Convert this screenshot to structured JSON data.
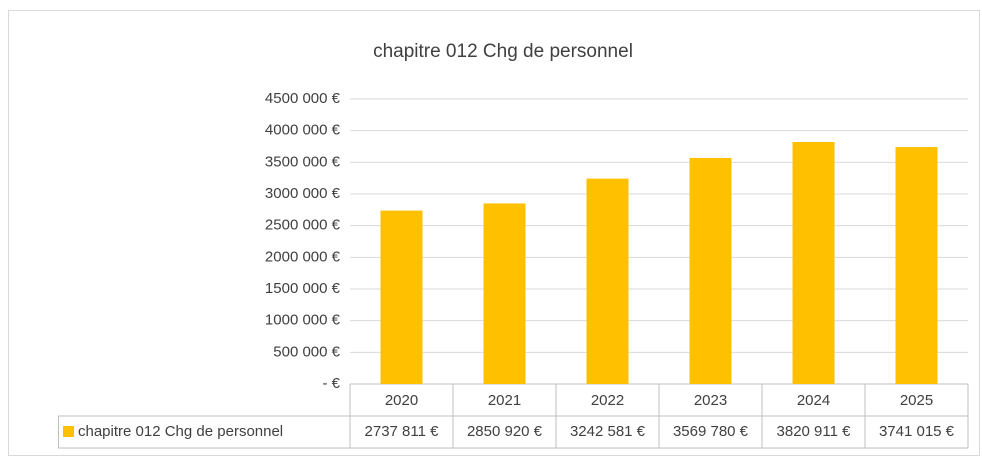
{
  "chart_data": {
    "type": "bar",
    "title": "chapitre 012 Chg de personnel",
    "categories": [
      "2020",
      "2021",
      "2022",
      "2023",
      "2024",
      "2025"
    ],
    "series": [
      {
        "name": "chapitre 012 Chg de personnel",
        "color": "#ffc000",
        "values": [
          2737811,
          2850920,
          3242581,
          3569780,
          3820911,
          3741015
        ],
        "value_labels": [
          "2737 811 €",
          "2850 920 €",
          "3242 581 €",
          "3569 780 €",
          "3820 911 €",
          "3741 015 €"
        ]
      }
    ],
    "ylim": [
      0,
      4500000
    ],
    "yticks": [
      {
        "value": 0,
        "label": "-  €"
      },
      {
        "value": 500000,
        "label": "500 000 €"
      },
      {
        "value": 1000000,
        "label": "1000 000 €"
      },
      {
        "value": 1500000,
        "label": "1500 000 €"
      },
      {
        "value": 2000000,
        "label": "2000 000 €"
      },
      {
        "value": 2500000,
        "label": "2500 000 €"
      },
      {
        "value": 3000000,
        "label": "3000 000 €"
      },
      {
        "value": 3500000,
        "label": "3500 000 €"
      },
      {
        "value": 4000000,
        "label": "4000 000 €"
      },
      {
        "value": 4500000,
        "label": "4500 000 €"
      }
    ],
    "grid": true
  }
}
